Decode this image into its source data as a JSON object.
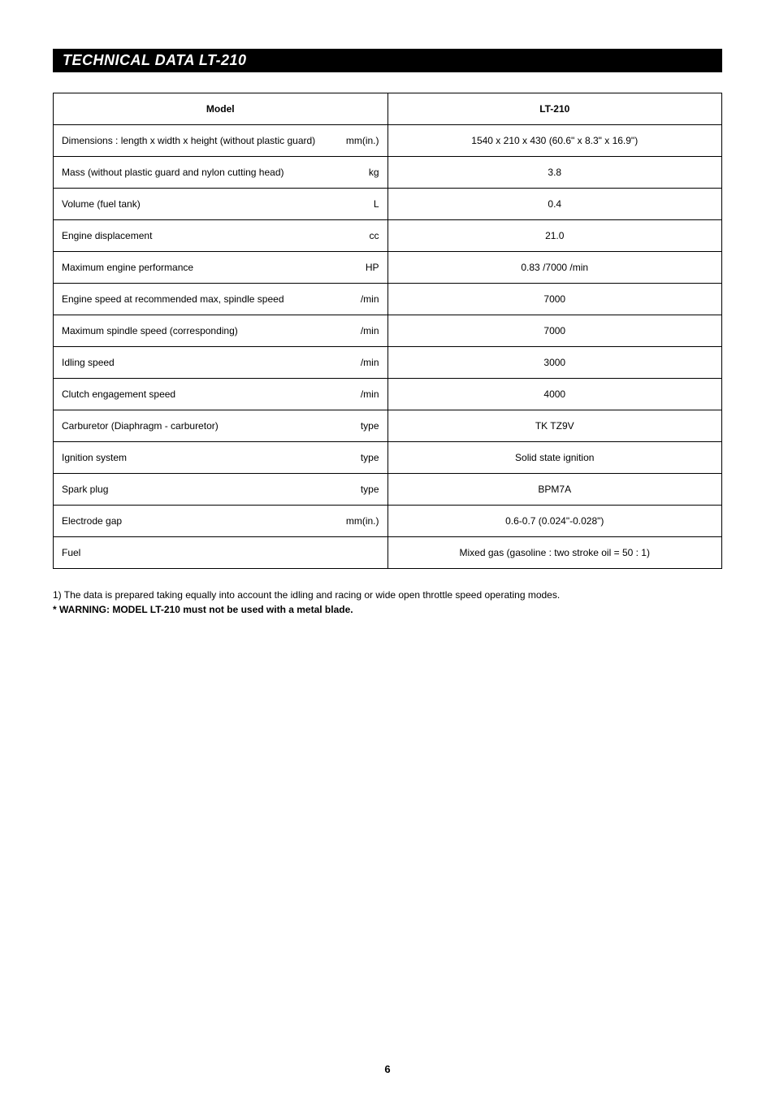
{
  "heading": "TECHNICAL DATA LT-210",
  "table": {
    "header_label": "Model",
    "header_value": "LT-210",
    "rows": [
      {
        "label": "Dimensions : length x width x height (without plastic guard)",
        "unit": "mm(in.)",
        "value": "1540 x 210 x 430 (60.6\" x 8.3\" x 16.9\")"
      },
      {
        "label": "Mass (without plastic guard and nylon cutting head)",
        "unit": "kg",
        "value": "3.8"
      },
      {
        "label": "Volume (fuel tank)",
        "unit": "L",
        "value": "0.4"
      },
      {
        "label": "Engine displacement",
        "unit": "cc",
        "value": "21.0"
      },
      {
        "label": "Maximum engine performance",
        "unit": "HP",
        "value": "0.83 /7000 /min"
      },
      {
        "label": "Engine speed at recommended max, spindle speed",
        "unit": "/min",
        "value": "7000"
      },
      {
        "label": "Maximum spindle speed (corresponding)",
        "unit": "/min",
        "value": "7000"
      },
      {
        "label": "Idling speed",
        "unit": "/min",
        "value": "3000"
      },
      {
        "label": "Clutch engagement speed",
        "unit": "/min",
        "value": "4000"
      },
      {
        "label": "Carburetor (Diaphragm - carburetor)",
        "unit": "type",
        "value": "TK TZ9V"
      },
      {
        "label": "Ignition system",
        "unit": "type",
        "value": "Solid state ignition"
      },
      {
        "label": "Spark plug",
        "unit": "type",
        "value": "BPM7A"
      },
      {
        "label": "Electrode gap",
        "unit": "mm(in.)",
        "value": "0.6-0.7 (0.024\"-0.028\")"
      },
      {
        "label": "Fuel",
        "unit": "",
        "value": "Mixed gas (gasoline : two stroke oil = 50 : 1)"
      }
    ]
  },
  "footnote": "1) The data is prepared taking equally into account the idling and racing or wide open throttle speed operating modes.",
  "warning": "* WARNING: MODEL LT-210 must not be used with a metal blade.",
  "page_number": "6",
  "styling": {
    "heading_bg": "#000000",
    "heading_color": "#ffffff",
    "heading_fontsize": 18,
    "border_color": "#000000",
    "cell_fontsize": 12,
    "footnote_fontsize": 12,
    "body_bg": "#ffffff"
  }
}
